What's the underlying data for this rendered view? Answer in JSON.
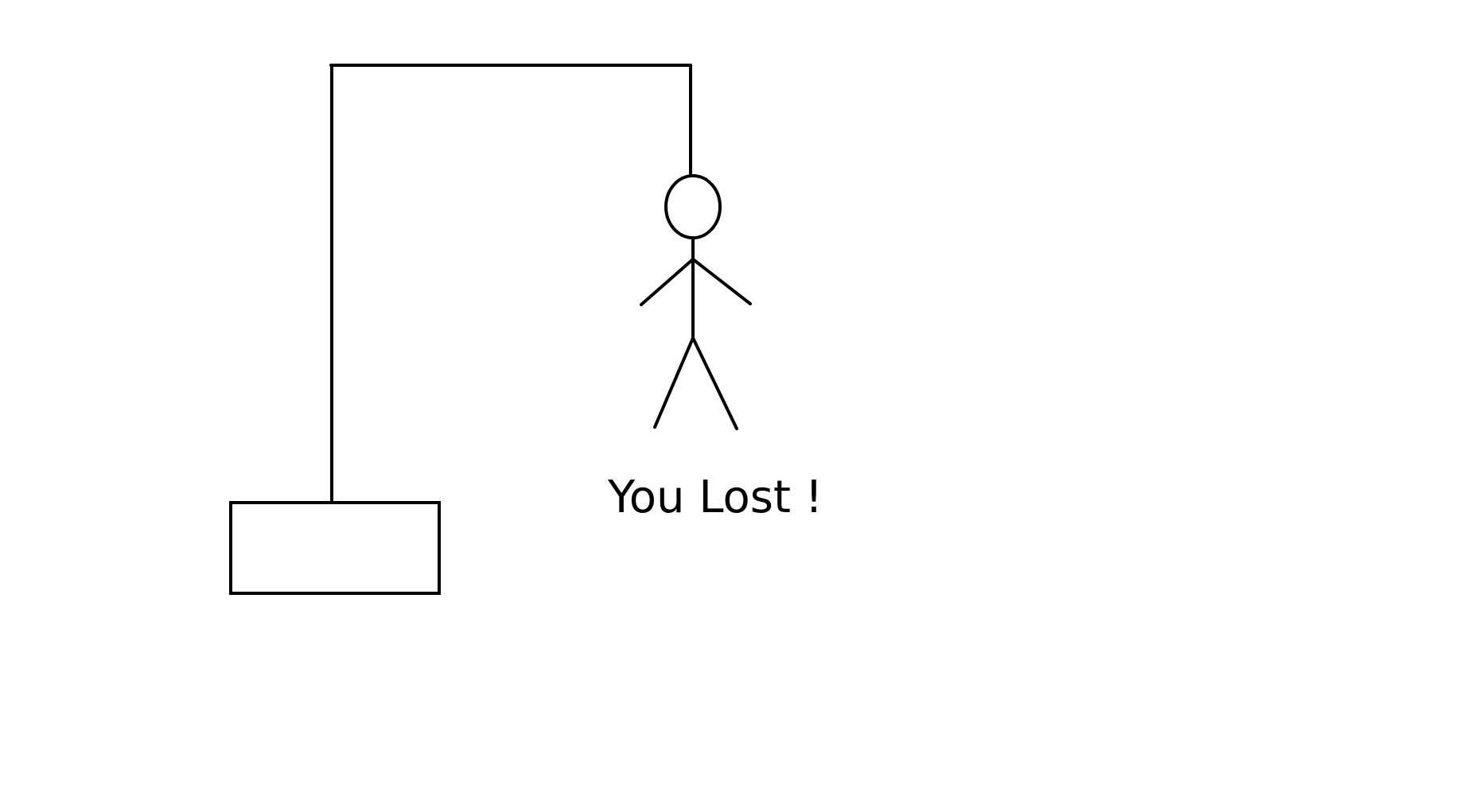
{
  "game": {
    "result_message": "You Lost !",
    "stroke_color": "#000000",
    "background_color": "#ffffff"
  }
}
